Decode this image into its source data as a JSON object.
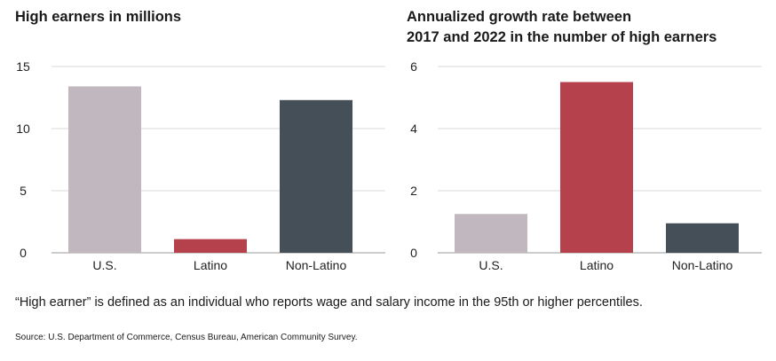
{
  "chart_data": [
    {
      "type": "bar",
      "title": "High earners in millions",
      "categories": [
        "U.S.",
        "Latino",
        "Non-Latino"
      ],
      "values": [
        13.4,
        1.1,
        12.3
      ],
      "colors": [
        "#c1b8bf",
        "#b5414d",
        "#454f57"
      ],
      "yticks": [
        "0",
        "5",
        "10",
        "15"
      ],
      "ylim": [
        0,
        15
      ],
      "grid": true
    },
    {
      "type": "bar",
      "title": "Annualized growth rate between 2017 and 2022 in the number of high earners",
      "categories": [
        "U.S.",
        "Latino",
        "Non-Latino"
      ],
      "values": [
        1.25,
        5.5,
        0.95
      ],
      "colors": [
        "#c1b8bf",
        "#b5414d",
        "#454f57"
      ],
      "yticks": [
        "0",
        "2",
        "4",
        "6"
      ],
      "ylim": [
        0,
        6
      ],
      "grid": true
    }
  ],
  "titles": {
    "left": "High earners in millions",
    "right_line1": "Annualized growth rate between",
    "right_line2": "2017 and 2022 in the number of high earners"
  },
  "note": "“High earner” is defined as an individual who reports wage and salary income in the 95th or higher percentiles.",
  "source": "Source: U.S. Department of Commerce, Census Bureau, American Community Survey.",
  "colors": {
    "grid": "#d9d9d9",
    "axis": "#999999"
  }
}
